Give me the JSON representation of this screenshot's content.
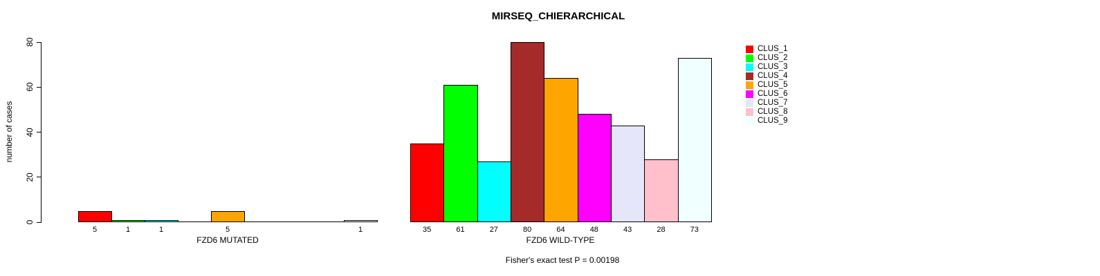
{
  "chart_data": {
    "type": "bar",
    "title": "MIRSEQ_CHIERARCHICAL",
    "ylabel": "number of cases",
    "ylim": [
      0,
      80
    ],
    "yticks": [
      0,
      20,
      40,
      60,
      80
    ],
    "grid": false,
    "legend_position": "right",
    "categories": [
      "CLUS_1",
      "CLUS_2",
      "CLUS_3",
      "CLUS_4",
      "CLUS_5",
      "CLUS_6",
      "CLUS_7",
      "CLUS_8",
      "CLUS_9"
    ],
    "colors": [
      "#FF0000",
      "#00FF00",
      "#00FFFF",
      "#A52A2A",
      "#FFA500",
      "#FF00FF",
      "#E6E6FA",
      "#FFC0CB",
      "#F0FFFF"
    ],
    "groups": [
      {
        "label": "FZD6 MUTATED",
        "values": [
          5,
          1,
          1,
          0,
          5,
          0,
          0,
          0,
          1
        ]
      },
      {
        "label": "FZD6 WILD-TYPE",
        "values": [
          35,
          61,
          27,
          80,
          64,
          48,
          43,
          28,
          73
        ]
      }
    ],
    "annotation": "Fisher's exact test P = 0.00198"
  }
}
